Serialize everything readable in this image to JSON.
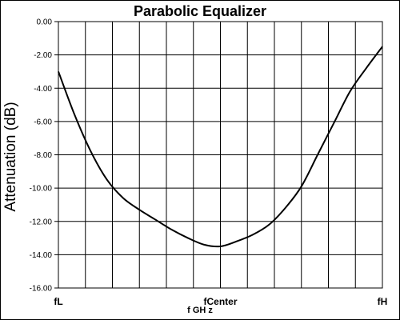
{
  "chart_data": {
    "type": "line",
    "title": "Parabolic Equalizer",
    "ylabel": "Attenuation (dB)",
    "xlabel": "f GH z",
    "y_ticks": [
      "0.00",
      "-2.00",
      "-4.00",
      "-6.00",
      "-8.00",
      "-10.00",
      "-12.00",
      "-14.00",
      "-16.00"
    ],
    "ylim": [
      -16,
      0
    ],
    "x_ticks": [
      {
        "label": "fL",
        "pos": 0
      },
      {
        "label": "fCenter",
        "pos": 0.5
      },
      {
        "label": "fH",
        "pos": 1
      }
    ],
    "xlim": [
      0,
      1
    ],
    "x_gridlines": 12,
    "grid": true,
    "series": [
      {
        "color": "#000000",
        "x": [
          0.0,
          0.05,
          0.1,
          0.15,
          0.2,
          0.25,
          0.3,
          0.35,
          0.4,
          0.45,
          0.5,
          0.55,
          0.6,
          0.65,
          0.7,
          0.75,
          0.8,
          0.85,
          0.9,
          0.95,
          1.0
        ],
        "y": [
          -3.0,
          -5.6,
          -7.8,
          -9.5,
          -10.6,
          -11.3,
          -11.9,
          -12.5,
          -13.0,
          -13.4,
          -13.5,
          -13.2,
          -12.8,
          -12.2,
          -11.2,
          -9.9,
          -8.0,
          -6.1,
          -4.2,
          -2.8,
          -1.5
        ]
      }
    ]
  }
}
